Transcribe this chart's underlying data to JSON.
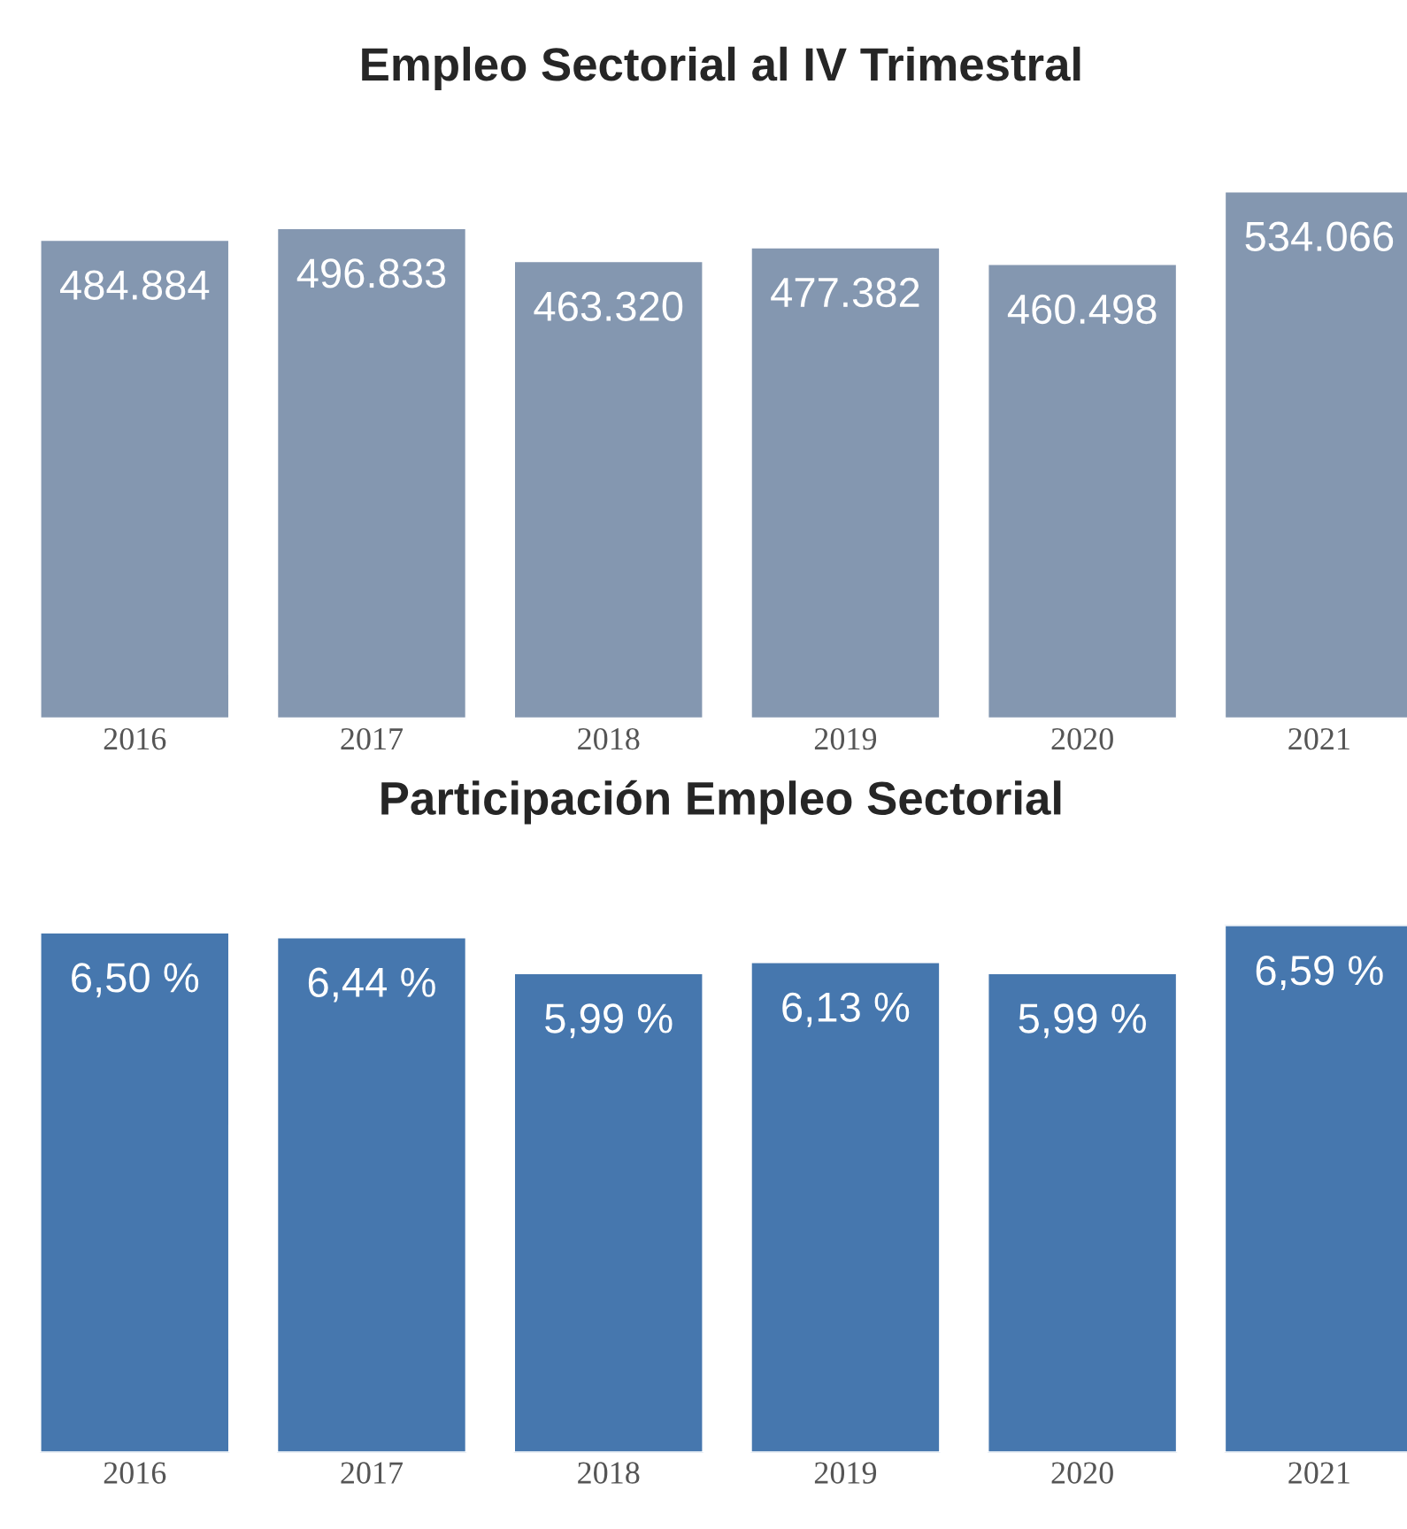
{
  "chart_data": [
    {
      "type": "bar",
      "title": "Empleo Sectorial al IV Trimestral",
      "categories": [
        "2016",
        "2017",
        "2018",
        "2019",
        "2020",
        "2021"
      ],
      "color": "#8497b0",
      "values": [
        484884,
        496833,
        463320,
        477382,
        460498,
        534066
      ],
      "value_labels": [
        "484.884",
        "496.833",
        "463.320",
        "477.382",
        "460.498",
        "534.066"
      ],
      "ylim": [
        0,
        534066
      ],
      "grid": false,
      "legend": false
    },
    {
      "type": "bar",
      "title": "Participación Empleo Sectorial",
      "categories": [
        "2016",
        "2017",
        "2018",
        "2019",
        "2020",
        "2021"
      ],
      "color": "#4677ae",
      "values": [
        6.5,
        6.44,
        5.99,
        6.13,
        5.99,
        6.59
      ],
      "value_labels": [
        "6,50 %",
        "6,44 %",
        "5,99 %",
        "6,13 %",
        "5,99 %",
        "6,59 %"
      ],
      "ylim": [
        0,
        6.59
      ],
      "grid": false,
      "legend": false
    }
  ]
}
